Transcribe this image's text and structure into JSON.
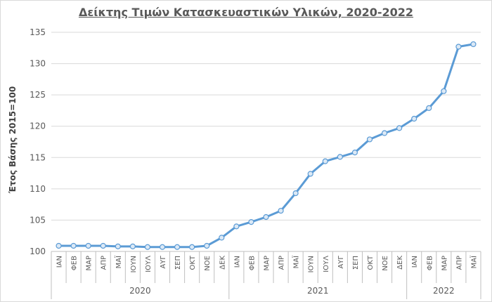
{
  "chart_data": {
    "type": "line",
    "title": "Δείκτης Τιμών Κατασκευαστικών Υλικών, 2020-2022",
    "ylabel": "Έτος Βάσης 2015=100",
    "xlabel": "",
    "ylim": [
      100,
      135
    ],
    "yticks": [
      100,
      105,
      110,
      115,
      120,
      125,
      130,
      135
    ],
    "grid": true,
    "legend": "none",
    "line_color": "#5b9bd5",
    "categories": [
      "ΙΑΝ",
      "ΦΕΒ",
      "ΜΑΡ",
      "ΑΠΡ",
      "ΜΑΪ",
      "ΙΟΥΝ",
      "ΙΟΥΛ",
      "ΑΥΓ",
      "ΣΕΠ",
      "ΟΚΤ",
      "ΝΟΕ",
      "ΔΕΚ",
      "ΙΑΝ",
      "ΦΕΒ",
      "ΜΑΡ",
      "ΑΠΡ",
      "ΜΑΪ",
      "ΙΟΥΝ",
      "ΙΟΥΛ",
      "ΑΥΓ",
      "ΣΕΠ",
      "ΟΚΤ",
      "ΝΟΕ",
      "ΔΕΚ",
      "ΙΑΝ",
      "ΦΕΒ",
      "ΜΑΡ",
      "ΑΠΡ",
      "ΜΑΪ"
    ],
    "groups": [
      {
        "label": "2020",
        "count": 12
      },
      {
        "label": "2021",
        "count": 12
      },
      {
        "label": "2022",
        "count": 5
      }
    ],
    "series": [
      {
        "values": [
          100.9,
          100.9,
          100.9,
          100.9,
          100.8,
          100.8,
          100.7,
          100.7,
          100.7,
          100.7,
          100.9,
          102.2,
          104.0,
          104.7,
          105.5,
          106.5,
          109.3,
          112.4,
          114.4,
          115.1,
          115.8,
          117.9,
          118.9,
          119.7,
          121.2,
          122.9,
          125.6,
          132.7,
          133.1
        ]
      }
    ]
  }
}
